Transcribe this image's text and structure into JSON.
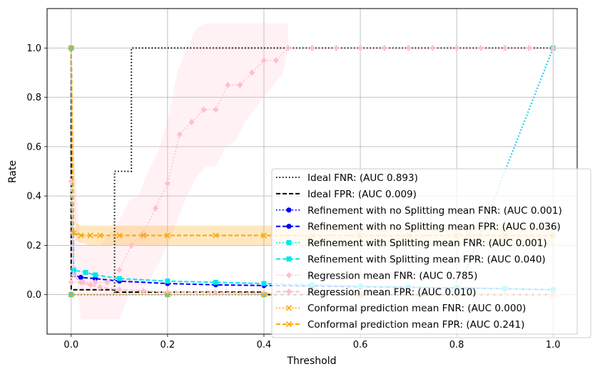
{
  "chart_data": {
    "type": "line",
    "title": "",
    "xlabel": "Threshold",
    "ylabel": "Rate",
    "xlim": [
      -0.05,
      1.05
    ],
    "ylim": [
      -0.16,
      1.16
    ],
    "xticks": [
      0.0,
      0.2,
      0.4,
      0.6,
      0.8,
      1.0
    ],
    "yticks": [
      0.0,
      0.2,
      0.4,
      0.6,
      0.8,
      1.0
    ],
    "xtick_labels": [
      "0.0",
      "0.2",
      "0.4",
      "0.6",
      "0.8",
      "1.0"
    ],
    "ytick_labels": [
      "0.0",
      "0.2",
      "0.4",
      "0.6",
      "0.8",
      "1.0"
    ],
    "grid": true,
    "legend_position": "lower-right",
    "bands": [
      {
        "name": "Regression mean FNR band",
        "color": "#ffc0cb",
        "opacity": 0.22,
        "x": [
          0.0,
          0.02,
          0.04,
          0.06,
          0.08,
          0.1,
          0.12,
          0.14,
          0.16,
          0.18,
          0.2,
          0.22,
          0.24,
          0.26,
          0.28,
          0.3,
          0.32,
          0.34,
          0.36,
          0.38,
          0.4,
          0.42,
          0.44,
          0.45
        ],
        "lower": [
          0.25,
          -0.1,
          -0.1,
          -0.1,
          -0.1,
          -0.1,
          0.0,
          0.0,
          0.05,
          0.12,
          0.2,
          0.3,
          0.4,
          0.48,
          0.52,
          0.52,
          0.6,
          0.62,
          0.7,
          0.75,
          0.8,
          0.85,
          0.9,
          1.0
        ],
        "upper": [
          0.7,
          0.2,
          0.2,
          0.2,
          0.25,
          0.3,
          0.38,
          0.4,
          0.5,
          0.58,
          0.7,
          0.9,
          1.0,
          1.08,
          1.1,
          1.1,
          1.1,
          1.1,
          1.1,
          1.1,
          1.1,
          1.1,
          1.1,
          1.1
        ]
      },
      {
        "name": "Conformal prediction mean FPR band",
        "color": "#ffa500",
        "opacity": 0.25,
        "x": [
          0.0,
          0.01,
          0.02,
          0.04,
          0.1,
          0.2,
          0.3,
          0.4,
          0.5,
          0.6,
          0.7,
          0.8,
          0.9,
          1.0
        ],
        "lower": [
          0.8,
          0.22,
          0.21,
          0.2,
          0.2,
          0.2,
          0.2,
          0.2,
          0.2,
          0.2,
          0.2,
          0.2,
          0.2,
          0.2
        ],
        "upper": [
          1.0,
          0.29,
          0.28,
          0.28,
          0.28,
          0.28,
          0.28,
          0.28,
          0.28,
          0.28,
          0.28,
          0.28,
          0.28,
          0.28
        ]
      }
    ],
    "series": [
      {
        "name": "Ideal FNR: (AUC 0.893)",
        "color": "#000000",
        "dash": "dotted",
        "marker": "none",
        "step": true,
        "x": [
          0.0,
          0.09,
          0.09,
          0.125,
          0.125,
          1.0
        ],
        "y": [
          0.0,
          0.0,
          0.5,
          0.5,
          1.0,
          1.0
        ]
      },
      {
        "name": "Ideal FPR: (AUC 0.009)",
        "color": "#000000",
        "dash": "dashed",
        "marker": "none",
        "step": true,
        "x": [
          0.0,
          0.0,
          0.09,
          0.09,
          0.4,
          0.4,
          1.0
        ],
        "y": [
          1.0,
          0.02,
          0.02,
          0.01,
          0.01,
          0.0,
          0.0
        ]
      },
      {
        "name": "Refinement with no Splitting mean FNR: (AUC 0.001)",
        "color": "#0000ff",
        "dash": "dotted",
        "marker": "circle",
        "x": [
          0.0,
          0.2,
          0.4,
          0.6,
          0.8,
          1.0
        ],
        "y": [
          0.0,
          0.0,
          0.0,
          0.0,
          0.0,
          1.0
        ]
      },
      {
        "name": "Refinement with no Splitting mean FPR: (AUC 0.036)",
        "color": "#0000ff",
        "dash": "dashed",
        "marker": "circle",
        "x": [
          0.0,
          0.005,
          0.02,
          0.05,
          0.1,
          0.2,
          0.3,
          0.4,
          0.5,
          0.6,
          0.7,
          0.8,
          0.9,
          1.0
        ],
        "y": [
          1.0,
          0.08,
          0.07,
          0.065,
          0.055,
          0.045,
          0.04,
          0.037,
          0.035,
          0.032,
          0.03,
          0.027,
          0.024,
          0.02
        ]
      },
      {
        "name": "Refinement with Splitting mean FNR: (AUC 0.001)",
        "color": "#00e5ee",
        "dash": "dotted",
        "marker": "square",
        "x": [
          0.0,
          0.2,
          0.4,
          0.6,
          0.8,
          1.0
        ],
        "y": [
          0.0,
          0.0,
          0.0,
          0.0,
          0.0,
          1.0
        ]
      },
      {
        "name": "Refinement with Splitting mean FPR: (AUC 0.040)",
        "color": "#00e5ee",
        "dash": "dashed",
        "marker": "square",
        "x": [
          0.0,
          0.005,
          0.03,
          0.05,
          0.1,
          0.2,
          0.3,
          0.4,
          0.5,
          0.6,
          0.7,
          0.8,
          0.9,
          1.0
        ],
        "y": [
          1.0,
          0.1,
          0.09,
          0.08,
          0.065,
          0.055,
          0.05,
          0.045,
          0.04,
          0.035,
          0.03,
          0.028,
          0.025,
          0.02
        ]
      },
      {
        "name": "Regression mean FNR: (AUC 0.785)",
        "color": "#ffc0cb",
        "dash": "dotted",
        "marker": "diamond",
        "x": [
          0.0,
          0.025,
          0.05,
          0.075,
          0.1,
          0.125,
          0.15,
          0.175,
          0.2,
          0.225,
          0.25,
          0.275,
          0.3,
          0.325,
          0.35,
          0.375,
          0.4,
          0.425,
          0.45,
          0.5,
          0.55,
          0.6,
          0.65,
          0.7,
          0.75,
          0.8,
          0.85,
          0.9,
          0.95,
          1.0
        ],
        "y": [
          0.05,
          0.05,
          0.05,
          0.05,
          0.1,
          0.2,
          0.25,
          0.35,
          0.45,
          0.65,
          0.7,
          0.75,
          0.75,
          0.85,
          0.85,
          0.9,
          0.95,
          0.95,
          1.0,
          1.0,
          1.0,
          1.0,
          1.0,
          1.0,
          1.0,
          1.0,
          1.0,
          1.0,
          1.0,
          1.0
        ]
      },
      {
        "name": "Regression mean FPR: (AUC 0.010)",
        "color": "#ffc0cb",
        "dash": "dashed",
        "marker": "diamond",
        "x": [
          0.0,
          0.005,
          0.02,
          0.04,
          0.06,
          0.1,
          0.15,
          0.2,
          0.3,
          0.4,
          0.5,
          0.6,
          0.7,
          0.8,
          0.9,
          1.0
        ],
        "y": [
          0.46,
          0.08,
          0.05,
          0.04,
          0.03,
          0.02,
          0.015,
          0.01,
          0.008,
          0.006,
          0.005,
          0.004,
          0.003,
          0.002,
          0.0,
          0.0
        ]
      },
      {
        "name": "Conformal prediction mean FNR: (AUC 0.000)",
        "color": "#ffa500",
        "dash": "dotted",
        "marker": "x",
        "x": [
          0.0,
          0.2,
          0.4,
          0.6,
          0.8,
          1.0
        ],
        "y": [
          0.0,
          0.0,
          0.0,
          0.0,
          0.0,
          0.0
        ]
      },
      {
        "name": "Conformal prediction mean FPR: (AUC 0.241)",
        "color": "#ffa500",
        "dash": "dashed",
        "marker": "x",
        "x": [
          0.0,
          0.005,
          0.02,
          0.04,
          0.06,
          0.1,
          0.15,
          0.2,
          0.3,
          0.4,
          0.5,
          0.6,
          0.7,
          0.8,
          0.9,
          1.0
        ],
        "y": [
          1.0,
          0.25,
          0.24,
          0.24,
          0.24,
          0.24,
          0.24,
          0.24,
          0.24,
          0.24,
          0.24,
          0.24,
          0.24,
          0.24,
          0.24,
          0.24
        ]
      }
    ]
  }
}
